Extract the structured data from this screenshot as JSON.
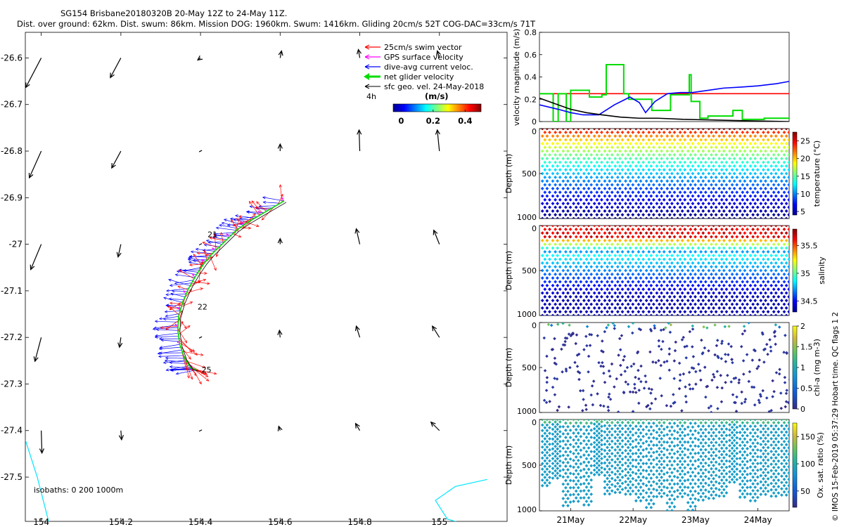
{
  "title": {
    "line1": "SG154 Brisbane20180320B 20-May 12Z to 24-May 11Z.",
    "line2": "Dist. over ground: 62km. Dist. swum: 86km. Mission DOG: 1960km. Swum: 1416km. Gliding 20cm/s 52T COG-DAC=33cm/s 71T"
  },
  "credit": "© IMOS 15-Feb-2019 05:37:29 Hobart time. QC flags 1  2",
  "colors": {
    "swim": "#ff0000",
    "gps": "#ff00ff",
    "dac": "#0000ff",
    "net": "#00dd00",
    "sfc": "#000000",
    "isobath": "#00e5ff",
    "threshold": "#ff0000"
  },
  "chart_data": [
    {
      "type": "scatter",
      "name": "map",
      "xlabel": "",
      "ylabel": "",
      "xlim": [
        153.96,
        155.17
      ],
      "ylim": [
        -27.595,
        -26.545
      ],
      "xticks": [
        "154",
        "154.2",
        "154.4",
        "154.6",
        "154.8",
        "155"
      ],
      "xtick_values": [
        154,
        154.2,
        154.4,
        154.6,
        154.8,
        155
      ],
      "yticks": [
        "-26.6",
        "-26.7",
        "-26.8",
        "-26.9",
        "-27",
        "-27.1",
        "-27.2",
        "-27.3",
        "-27.4",
        "-27.5"
      ],
      "ytick_values": [
        -26.6,
        -26.7,
        -26.8,
        -26.9,
        -27.0,
        -27.1,
        -27.2,
        -27.3,
        -27.4,
        -27.5
      ],
      "legend": {
        "items": [
          {
            "label": "25cm/s swim vector",
            "color": "#ff0000"
          },
          {
            "label": "GPS surface velocity",
            "color": "#ff00ff"
          },
          {
            "label": "dive-avg current veloc.",
            "color": "#0000ff"
          },
          {
            "label": "net glider velocity",
            "color": "#00dd00"
          },
          {
            "label": "sfc geo. vel. 24-May-2018",
            "color": "#000000"
          }
        ],
        "placement": "top-right"
      },
      "colorbar": {
        "scale_note": "4h",
        "label": "(m/s)",
        "ticks": [
          "0",
          "0.2",
          "0.4"
        ],
        "tick_values": [
          0,
          0.2,
          0.4
        ],
        "range": [
          -0.05,
          0.5
        ]
      },
      "isobaths_label": "isobaths: 0   200  1000m",
      "day_labels": [
        {
          "text": "21",
          "lon": 154.43,
          "lat": -26.985
        },
        {
          "text": "22",
          "lon": 154.405,
          "lat": -27.14
        },
        {
          "text": "25",
          "lon": 154.415,
          "lat": -27.275
        }
      ],
      "track": [
        [
          154.61,
          -26.907
        ],
        [
          154.56,
          -26.932
        ],
        [
          154.52,
          -26.952
        ],
        [
          154.49,
          -26.97
        ],
        [
          154.46,
          -26.995
        ],
        [
          154.43,
          -27.02
        ],
        [
          154.41,
          -27.04
        ],
        [
          154.39,
          -27.065
        ],
        [
          154.37,
          -27.095
        ],
        [
          154.355,
          -27.125
        ],
        [
          154.345,
          -27.155
        ],
        [
          154.343,
          -27.185
        ],
        [
          154.348,
          -27.215
        ],
        [
          154.36,
          -27.245
        ],
        [
          154.375,
          -27.265
        ],
        [
          154.39,
          -27.27
        ]
      ],
      "geo_vectors": [
        {
          "lon": 154.0,
          "lat": -26.6,
          "u": -0.22,
          "v": -0.42
        },
        {
          "lon": 154.2,
          "lat": -26.6,
          "u": -0.15,
          "v": -0.28
        },
        {
          "lon": 154.4,
          "lat": -26.6,
          "u": -0.04,
          "v": -0.03
        },
        {
          "lon": 154.6,
          "lat": -26.6,
          "u": 0.02,
          "v": 0.1
        },
        {
          "lon": 154.8,
          "lat": -26.6,
          "u": -0.02,
          "v": 0.12
        },
        {
          "lon": 155.0,
          "lat": -26.6,
          "u": -0.03,
          "v": 0.1
        },
        {
          "lon": 154.0,
          "lat": -26.8,
          "u": -0.17,
          "v": -0.38
        },
        {
          "lon": 154.2,
          "lat": -26.8,
          "u": -0.13,
          "v": -0.24
        },
        {
          "lon": 154.4,
          "lat": -26.8,
          "u": -0.03,
          "v": 0.0
        },
        {
          "lon": 154.6,
          "lat": -26.8,
          "u": 0.0,
          "v": 0.1
        },
        {
          "lon": 154.8,
          "lat": -26.8,
          "u": -0.01,
          "v": 0.3
        },
        {
          "lon": 155.0,
          "lat": -26.8,
          "u": -0.03,
          "v": 0.3
        },
        {
          "lon": 154.0,
          "lat": -27.0,
          "u": -0.15,
          "v": -0.36
        },
        {
          "lon": 154.2,
          "lat": -27.0,
          "u": -0.04,
          "v": -0.18
        },
        {
          "lon": 154.4,
          "lat": -27.0,
          "u": -0.02,
          "v": 0.0
        },
        {
          "lon": 154.6,
          "lat": -27.0,
          "u": 0.0,
          "v": 0.08
        },
        {
          "lon": 154.8,
          "lat": -27.0,
          "u": -0.05,
          "v": 0.22
        },
        {
          "lon": 155.0,
          "lat": -27.0,
          "u": -0.08,
          "v": 0.2
        },
        {
          "lon": 154.0,
          "lat": -27.2,
          "u": -0.09,
          "v": -0.34
        },
        {
          "lon": 154.2,
          "lat": -27.2,
          "u": -0.02,
          "v": -0.14
        },
        {
          "lon": 154.4,
          "lat": -27.2,
          "u": 0.0,
          "v": 0.0
        },
        {
          "lon": 154.6,
          "lat": -27.2,
          "u": -0.01,
          "v": 0.1
        },
        {
          "lon": 154.8,
          "lat": -27.2,
          "u": -0.05,
          "v": 0.16
        },
        {
          "lon": 155.0,
          "lat": -27.2,
          "u": -0.1,
          "v": 0.16
        },
        {
          "lon": 154.0,
          "lat": -27.4,
          "u": 0.01,
          "v": -0.32
        },
        {
          "lon": 154.2,
          "lat": -27.4,
          "u": 0.01,
          "v": -0.13
        },
        {
          "lon": 154.4,
          "lat": -27.4,
          "u": -0.01,
          "v": 0.0
        },
        {
          "lon": 154.6,
          "lat": -27.4,
          "u": -0.02,
          "v": 0.06
        },
        {
          "lon": 154.8,
          "lat": -27.4,
          "u": -0.06,
          "v": 0.1
        },
        {
          "lon": 155.0,
          "lat": -27.4,
          "u": -0.12,
          "v": 0.12
        }
      ],
      "isobath_lines": [
        {
          "name": "coast-200m",
          "points": [
            [
              153.96,
              -27.42
            ],
            [
              153.99,
              -27.5
            ],
            [
              154.02,
              -27.6
            ]
          ]
        },
        {
          "name": "isobath-1000m",
          "points": [
            [
              155.12,
              -27.505
            ],
            [
              155.04,
              -27.52
            ],
            [
              154.99,
              -27.55
            ],
            [
              155.02,
              -27.59
            ],
            [
              155.06,
              -27.6
            ]
          ]
        }
      ]
    },
    {
      "type": "line",
      "name": "velocity",
      "xlabel": "",
      "ylabel": "velocity magnitude (m/s)",
      "xlim": [
        20.5,
        24.5
      ],
      "ylim": [
        0,
        0.8
      ],
      "yticks": [
        "0",
        "0.2",
        "0.4",
        "0.6",
        "0.8"
      ],
      "ytick_values": [
        0,
        0.2,
        0.4,
        0.6,
        0.8
      ],
      "series": [
        {
          "name": "swim threshold",
          "color": "#ff0000",
          "x": [
            20.5,
            24.5
          ],
          "y": [
            0.25,
            0.25
          ]
        },
        {
          "name": "net glider velocity",
          "color": "#00dd00",
          "x": [
            20.5,
            20.72,
            20.72,
            20.8,
            20.8,
            20.93,
            20.93,
            21.0,
            21.0,
            21.3,
            21.3,
            21.5,
            21.5,
            21.57,
            21.57,
            21.85,
            21.85,
            21.93,
            21.93,
            22.3,
            22.3,
            22.6,
            22.6,
            22.9,
            22.9,
            22.93,
            22.93,
            23.07,
            23.07,
            23.2,
            23.2,
            23.6,
            23.6,
            23.75,
            23.75,
            24.1,
            24.1,
            24.5
          ],
          "y": [
            0.25,
            0.25,
            0.0,
            0.0,
            0.25,
            0.25,
            0.0,
            0.0,
            0.28,
            0.28,
            0.22,
            0.22,
            0.24,
            0.24,
            0.51,
            0.51,
            0.25,
            0.25,
            0.2,
            0.2,
            0.1,
            0.1,
            0.24,
            0.24,
            0.42,
            0.42,
            0.18,
            0.18,
            0.03,
            0.03,
            0.05,
            0.05,
            0.1,
            0.1,
            0.02,
            0.02,
            0.03,
            0.03
          ]
        },
        {
          "name": "dive-avg current",
          "color": "#0000ff",
          "x": [
            20.5,
            20.8,
            21.0,
            21.2,
            21.45,
            21.7,
            21.95,
            22.1,
            22.2,
            22.35,
            22.55,
            22.75,
            22.95,
            23.2,
            23.45,
            23.75,
            24.0,
            24.3,
            24.5
          ],
          "y": [
            0.15,
            0.11,
            0.08,
            0.06,
            0.06,
            0.15,
            0.22,
            0.17,
            0.08,
            0.18,
            0.25,
            0.26,
            0.26,
            0.28,
            0.3,
            0.31,
            0.32,
            0.34,
            0.36
          ]
        },
        {
          "name": "surface geostrophic",
          "color": "#000000",
          "x": [
            20.5,
            20.75,
            21.0,
            21.25,
            21.5,
            21.8,
            22.1,
            22.4,
            22.8,
            23.2,
            23.6,
            24.0,
            24.5
          ],
          "y": [
            0.21,
            0.16,
            0.11,
            0.08,
            0.06,
            0.04,
            0.03,
            0.03,
            0.02,
            0.015,
            0.01,
            0.005,
            0.0
          ]
        }
      ]
    },
    {
      "type": "scatter",
      "name": "temperature",
      "ylabel": "Depth (m)",
      "colorbar_label": "temperature (°C)",
      "yticks": [
        "0",
        "500",
        "1000"
      ],
      "ytick_values": [
        0,
        500,
        1000
      ],
      "ylim": [
        0,
        1000
      ],
      "cticks": [
        "5",
        "10",
        "15",
        "20",
        "25"
      ],
      "ctick_values": [
        5,
        10,
        15,
        20,
        25
      ],
      "clim": [
        4,
        27.5
      ],
      "dives": 24,
      "profile": "temp"
    },
    {
      "type": "scatter",
      "name": "salinity",
      "ylabel": "Depth (m)",
      "colorbar_label": "salinity",
      "yticks": [
        "0",
        "500",
        "1000"
      ],
      "ytick_values": [
        0,
        500,
        1000
      ],
      "ylim": [
        0,
        1000
      ],
      "cticks": [
        "34.5",
        "35",
        "35.5"
      ],
      "ctick_values": [
        34.5,
        35,
        35.5
      ],
      "clim": [
        34.3,
        35.8
      ],
      "dives": 24,
      "profile": "salt"
    },
    {
      "type": "scatter",
      "name": "chl-a",
      "ylabel": "Depth (m)",
      "colorbar_label": "chl-a (mg m-3)",
      "yticks": [
        "0",
        "500",
        "1000"
      ],
      "ytick_values": [
        0,
        500,
        1000
      ],
      "ylim": [
        0,
        1000
      ],
      "cticks": [
        "0",
        "0.5",
        "1",
        "1.5",
        "2"
      ],
      "ctick_values": [
        0,
        0.5,
        1,
        1.5,
        2
      ],
      "clim": [
        0,
        2
      ],
      "dives": 24,
      "profile": "chl"
    },
    {
      "type": "scatter",
      "name": "oxygen",
      "ylabel": "Depth (m)",
      "colorbar_label": "Ox. sat. ratio (%)",
      "yticks": [
        "0",
        "500",
        "1000"
      ],
      "ytick_values": [
        0,
        500,
        1000
      ],
      "ylim": [
        0,
        1000
      ],
      "cticks": [
        "50",
        "100",
        "150"
      ],
      "ctick_values": [
        50,
        100,
        150
      ],
      "clim": [
        20,
        175
      ],
      "dives": 24,
      "profile": "oxy",
      "xticks": [
        "21May",
        "22May",
        "23May",
        "24May"
      ],
      "xtick_values": [
        21,
        22,
        23,
        24
      ],
      "xlim": [
        20.5,
        24.5
      ]
    }
  ]
}
